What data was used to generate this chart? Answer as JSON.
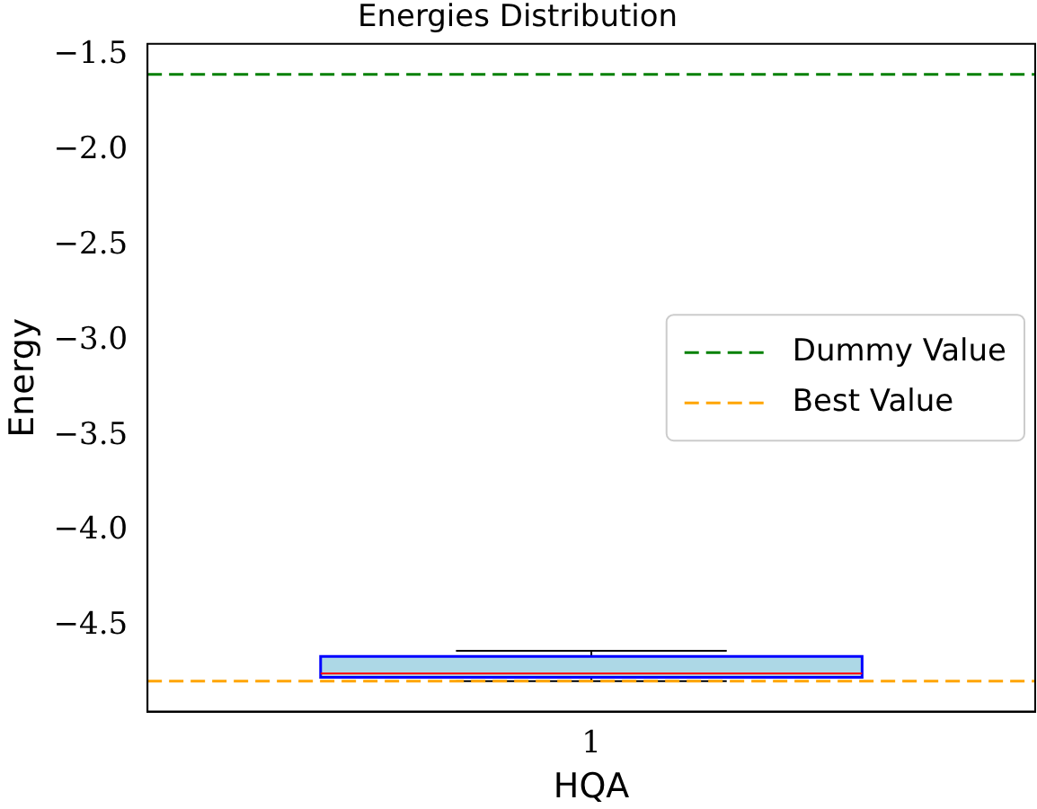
{
  "chart_data": {
    "type": "box",
    "title": "Energies Distribution",
    "xlabel": "HQA",
    "ylabel": "Energy",
    "categories": [
      "1"
    ],
    "series": [
      {
        "color": "#add8e6",
        "boxes": [
          {
            "low": -4.79,
            "q1": -4.77,
            "median": -4.75,
            "q3": -4.66,
            "high": -4.63
          }
        ]
      }
    ],
    "ylim": [
      -4.95,
      -1.44
    ],
    "yticks": [
      -4.5,
      {
        "value": -4,
        "label": "−4.0"
      },
      -3.5,
      {
        "value": -3,
        "label": "−3.0"
      },
      -2.5,
      {
        "value": -2,
        "label": "−2.0"
      },
      -1.5
    ],
    "ref_lines": [
      {
        "axis": "y",
        "value": -1.6,
        "label": "Dummy Value",
        "color": "#008000",
        "line_style": "dashed"
      },
      {
        "axis": "y",
        "value": -4.79,
        "label": "Best Value",
        "color": "#ffa500",
        "line_style": "dashed"
      }
    ],
    "legend": "right",
    "grid": false
  }
}
